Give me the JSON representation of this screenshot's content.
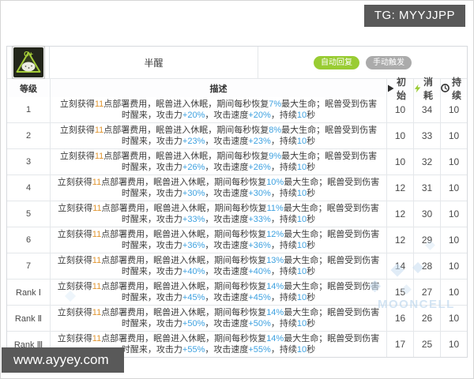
{
  "page": {
    "tg_badge": "TG: MYYJJPP",
    "site_badge": "www.ayyey.com",
    "watermark_text": "MOONCELL"
  },
  "skill": {
    "name": "半醒",
    "icon": "sleeping-beast-skill-icon",
    "activation_badge": "自动回复",
    "trigger_badge": "手动触发"
  },
  "colors": {
    "badge_green": "#99cc33",
    "badge_gray": "#ababab",
    "value_blue": "#3da1e0",
    "cost_orange": "#e0952f",
    "dark_badge_bg": "#595959"
  },
  "table": {
    "headers": {
      "level": "等级",
      "description": "描述",
      "initial": "初始",
      "cost": "消耗",
      "duration": "持续"
    },
    "header_icons": {
      "initial": "play-icon",
      "cost": "lightning-icon",
      "duration": "clock-icon"
    },
    "desc_parts": [
      "立刻获得",
      "{cost}",
      "点部署费用，眠兽进入休眠，期间每秒恢复",
      "{heal}",
      "最大生命；眠兽受到伤害时醒来，攻击力",
      "{atk}",
      "，攻击速度",
      "{aspd}",
      "，持续",
      "{dur}",
      "秒"
    ],
    "rows": [
      {
        "level": "1",
        "cost": "11",
        "heal": "7%",
        "atk": "+20%",
        "aspd": "+20%",
        "dur": "10",
        "initial": "10",
        "sp": "34",
        "duration": "10"
      },
      {
        "level": "2",
        "cost": "11",
        "heal": "8%",
        "atk": "+23%",
        "aspd": "+23%",
        "dur": "10",
        "initial": "10",
        "sp": "33",
        "duration": "10"
      },
      {
        "level": "3",
        "cost": "11",
        "heal": "9%",
        "atk": "+26%",
        "aspd": "+26%",
        "dur": "10",
        "initial": "10",
        "sp": "32",
        "duration": "10"
      },
      {
        "level": "4",
        "cost": "11",
        "heal": "10%",
        "atk": "+30%",
        "aspd": "+30%",
        "dur": "10",
        "initial": "12",
        "sp": "31",
        "duration": "10"
      },
      {
        "level": "5",
        "cost": "11",
        "heal": "11%",
        "atk": "+33%",
        "aspd": "+33%",
        "dur": "10",
        "initial": "12",
        "sp": "30",
        "duration": "10"
      },
      {
        "level": "6",
        "cost": "11",
        "heal": "12%",
        "atk": "+36%",
        "aspd": "+36%",
        "dur": "10",
        "initial": "12",
        "sp": "29",
        "duration": "10"
      },
      {
        "level": "7",
        "cost": "11",
        "heal": "13%",
        "atk": "+40%",
        "aspd": "+40%",
        "dur": "10",
        "initial": "14",
        "sp": "28",
        "duration": "10"
      },
      {
        "level": "Rank Ⅰ",
        "cost": "11",
        "heal": "14%",
        "atk": "+45%",
        "aspd": "+45%",
        "dur": "10",
        "initial": "15",
        "sp": "27",
        "duration": "10"
      },
      {
        "level": "Rank Ⅱ",
        "cost": "11",
        "heal": "14%",
        "atk": "+50%",
        "aspd": "+50%",
        "dur": "10",
        "initial": "16",
        "sp": "26",
        "duration": "10"
      },
      {
        "level": "Rank Ⅲ",
        "cost": "11",
        "heal": "14%",
        "atk": "+55%",
        "aspd": "+55%",
        "dur": "10",
        "initial": "17",
        "sp": "25",
        "duration": "10"
      }
    ]
  }
}
